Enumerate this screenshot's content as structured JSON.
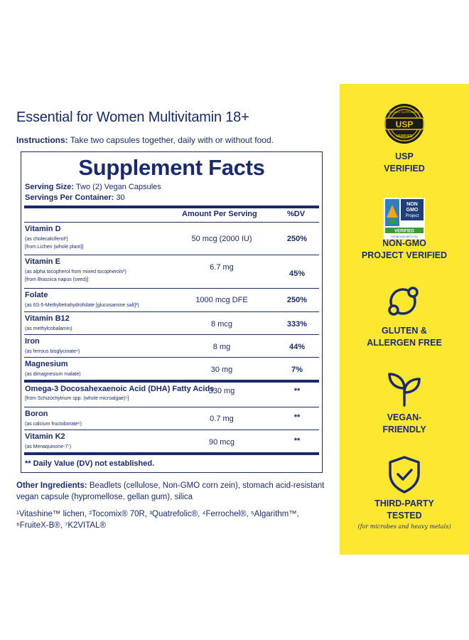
{
  "title": "Essential for Women Multivitamin 18+",
  "instructions": {
    "label": "Instructions:",
    "text": " Take two capsules together, daily with or without food."
  },
  "facts": {
    "heading": "Supplement Facts",
    "serving_size_label": "Serving Size:",
    "serving_size": " Two (2) Vegan Capsules",
    "servings_label": "Servings Per Container:",
    "servings": " 30",
    "col_amount": "Amount Per Serving",
    "col_dv": "%DV",
    "rows": [
      {
        "name": "Vitamin D",
        "sub1": "(as cholecalciferol¹)",
        "sub2": "[from Lichen (whole plant)]",
        "amount": "50 mcg (2000 IU)",
        "dv": "250%"
      },
      {
        "name": "Vitamin E",
        "sub1": "(as alpha tocopherol from mixed tocopherols²)",
        "sub2": "[from Brassica napus (seed)]",
        "amount": "6.7 mg",
        "dv": "45%"
      },
      {
        "name": "Folate",
        "sub1": "(as 6S-5-Methyltetrahydrofolate [glucosamine salt]³)",
        "sub2": "",
        "amount": "1000 mcg DFE",
        "dv": "250%"
      },
      {
        "name": "Vitamin B12",
        "sub1": "(as methylcobalamin)",
        "sub2": "",
        "amount": "8 mcg",
        "dv": "333%"
      },
      {
        "name": "Iron",
        "sub1": "(as ferrous bisglycinate⁴)",
        "sub2": "",
        "amount": "8 mg",
        "dv": "44%"
      },
      {
        "name": "Magnesium",
        "sub1": "(as dimagnesium malate)",
        "sub2": "",
        "amount": "30 mg",
        "dv": "7%"
      },
      {
        "name": "Omega-3 Docosahexaenoic Acid (DHA) Fatty Acids",
        "sub1": "[from Schizochytrium spp. (whole microalgae)⁵]",
        "sub2": "",
        "amount": "330 mg",
        "dv": "**"
      },
      {
        "name": "Boron",
        "sub1": "(as calcium fructoborate⁶)",
        "sub2": "",
        "amount": "0.7 mg",
        "dv": "**"
      },
      {
        "name": "Vitamin K2",
        "sub1": "(as Menaquinone-7⁷)",
        "sub2": "",
        "amount": "90 mcg",
        "dv": "**"
      }
    ],
    "dv_note": "** Daily Value (DV) not established."
  },
  "other": {
    "label": "Other Ingredients:",
    "text": " Beadlets (cellulose, Non-GMO corn zein), stomach acid-resistant vegan capsule (hypromellose, gellan gum), silica"
  },
  "trademarks": "¹Vitashine™ lichen, ²Tocomix® 70R, ³Quatrefolic®, ⁴Ferrochel®, ⁵Algarithm™, ⁶FruiteX-B®, ⁷K2VITAL®",
  "badges": {
    "usp_logo": {
      "top": "DIETARY SUPPLEMENT",
      "mid": "USP",
      "bottom": "VERIFIED"
    },
    "usp": [
      "USP",
      "VERIFIED"
    ],
    "nongmo_logo": {
      "l1": "NON",
      "l2": "GMO",
      "l3": "Project",
      "l4": "VERIFIED",
      "l5": "nongmoproject.org"
    },
    "nongmo": [
      "NON-GMO",
      "PROJECT VERIFIED"
    ],
    "gluten": [
      "GLUTEN &",
      "ALLERGEN FREE"
    ],
    "vegan": [
      "VEGAN-",
      "FRIENDLY"
    ],
    "tested": [
      "THIRD-PARTY",
      "TESTED"
    ],
    "tested_note": "(for microbes and heavy metals)"
  },
  "colors": {
    "navy": "#1a2a6c",
    "yellow": "#fde731"
  }
}
